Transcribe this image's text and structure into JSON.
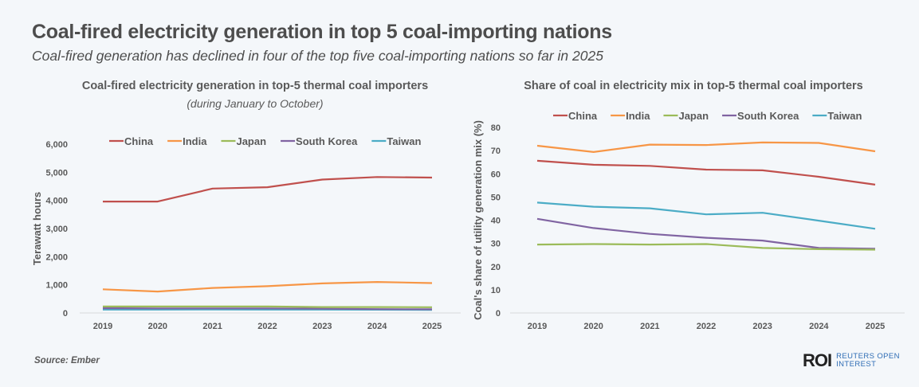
{
  "header": {
    "title": "Coal-fired electricity generation in top 5 coal-importing nations",
    "subtitle": "Coal-fired generation has declined in four of the top five coal-importing nations so far in 2025"
  },
  "footer": {
    "source": "Source:  Ember",
    "logo_mark": "ROI",
    "logo_line1": "REUTERS OPEN",
    "logo_line2": "INTEREST"
  },
  "chart_data": [
    {
      "type": "line",
      "title": "Coal-fired electricity generation in top-5 thermal coal importers",
      "subtitle": "(during January to October)",
      "xlabel": "",
      "ylabel": "Terawatt hours",
      "x": [
        "2019",
        "2020",
        "2021",
        "2022",
        "2023",
        "2024",
        "2025"
      ],
      "ylim": [
        0,
        6000
      ],
      "yticks": [
        0,
        1000,
        2000,
        3000,
        4000,
        5000,
        6000
      ],
      "ytick_labels": [
        "0",
        "1,000",
        "2,000",
        "3,000",
        "4,000",
        "5,000",
        "6,000"
      ],
      "grid": false,
      "legend": "top",
      "series": [
        {
          "name": "China",
          "color": "#c0504d",
          "values": [
            3960,
            3960,
            4420,
            4470,
            4740,
            4830,
            4810
          ]
        },
        {
          "name": "India",
          "color": "#f79646",
          "values": [
            840,
            760,
            890,
            950,
            1050,
            1100,
            1060
          ]
        },
        {
          "name": "Japan",
          "color": "#9bbb59",
          "values": [
            230,
            230,
            230,
            230,
            210,
            210,
            205
          ]
        },
        {
          "name": "South Korea",
          "color": "#8064a2",
          "values": [
            170,
            160,
            160,
            160,
            150,
            135,
            130
          ]
        },
        {
          "name": "Taiwan",
          "color": "#4bacc6",
          "values": [
            120,
            120,
            125,
            120,
            120,
            115,
            110
          ]
        }
      ]
    },
    {
      "type": "line",
      "title": "Share of coal in electricity mix in top-5 thermal coal importers",
      "xlabel": "",
      "ylabel": "Coal's share of utility generation mix (%)",
      "x": [
        "2019",
        "2020",
        "2021",
        "2022",
        "2023",
        "2024",
        "2025"
      ],
      "ylim": [
        0,
        80
      ],
      "yticks": [
        0,
        10,
        20,
        30,
        40,
        50,
        60,
        70,
        80
      ],
      "ytick_labels": [
        "0",
        "10",
        "20",
        "30",
        "40",
        "50",
        "60",
        "70",
        "80"
      ],
      "grid": false,
      "legend": "top",
      "series": [
        {
          "name": "China",
          "color": "#c0504d",
          "values": [
            65.6,
            63.9,
            63.4,
            61.8,
            61.5,
            58.7,
            55.3
          ]
        },
        {
          "name": "India",
          "color": "#f79646",
          "values": [
            72.1,
            69.4,
            72.6,
            72.4,
            73.5,
            73.3,
            69.7
          ]
        },
        {
          "name": "Japan",
          "color": "#9bbb59",
          "values": [
            29.5,
            29.7,
            29.5,
            29.7,
            28.0,
            27.5,
            27.3
          ]
        },
        {
          "name": "South Korea",
          "color": "#8064a2",
          "values": [
            40.6,
            36.6,
            34.1,
            32.4,
            31.2,
            28.0,
            27.7
          ]
        },
        {
          "name": "Taiwan",
          "color": "#4bacc6",
          "values": [
            47.6,
            45.8,
            45.1,
            42.5,
            43.2,
            39.8,
            36.3
          ]
        }
      ]
    }
  ]
}
